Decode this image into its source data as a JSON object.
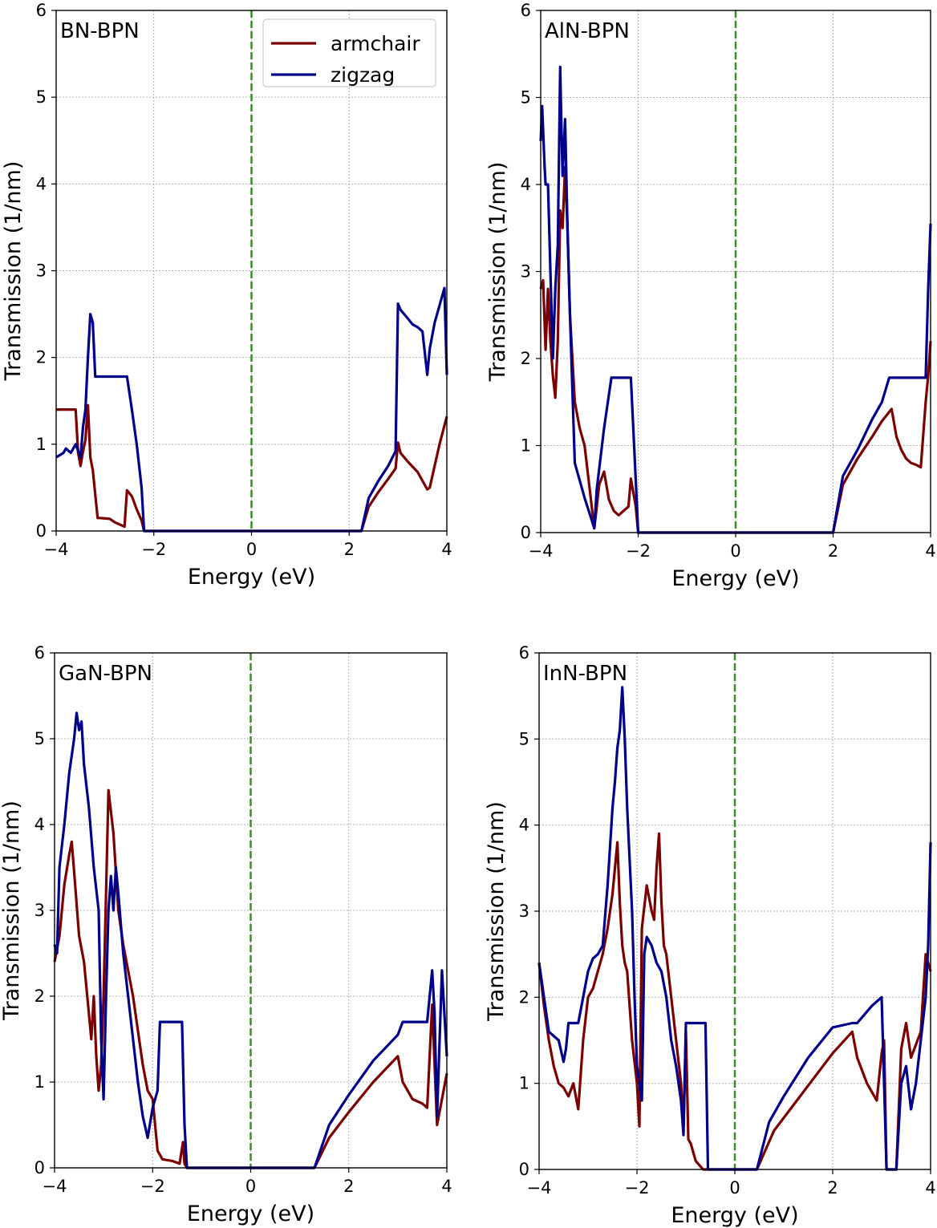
{
  "figure": {
    "legend": {
      "armchair_label": "armchair",
      "zigzag_label": "zigzag"
    },
    "colors": {
      "armchair": "#7b0000",
      "zigzag": "#00008b",
      "fermi_line": "#3c8c28",
      "grid": "#b0b0b0"
    }
  },
  "chart_data": [
    {
      "type": "line",
      "panel": "BN-BPN",
      "xlabel": "Energy (eV)",
      "ylabel": "Transmission (1/nm)",
      "xlim": [
        -4,
        4
      ],
      "ylim": [
        0,
        6
      ],
      "xticks": [
        -4,
        -2,
        0,
        2,
        4
      ],
      "xtick_labels": [
        "−4",
        "−2",
        "0",
        "2",
        "4"
      ],
      "yticks": [
        0,
        1,
        2,
        3,
        4,
        5,
        6
      ],
      "ytick_labels": [
        "0",
        "1",
        "2",
        "3",
        "4",
        "5",
        "6"
      ],
      "grid": true,
      "fermi_level": 0,
      "legend": true,
      "series": [
        {
          "name": "armchair",
          "x": [
            -4,
            -3.6,
            -3.55,
            -3.5,
            -3.45,
            -3.4,
            -3.35,
            -3.3,
            -3.25,
            -3.15,
            -3.1,
            -2.9,
            -2.8,
            -2.6,
            -2.55,
            -2.45,
            -2.35,
            -2.25,
            -2.2,
            2.25,
            2.4,
            2.6,
            2.8,
            2.95,
            3.0,
            3.05,
            3.2,
            3.4,
            3.6,
            3.65,
            3.75,
            3.85,
            4.0
          ],
          "y": [
            1.4,
            1.4,
            0.9,
            0.75,
            0.92,
            1.05,
            1.45,
            0.85,
            0.7,
            0.15,
            0.15,
            0.14,
            0.1,
            0.05,
            0.47,
            0.4,
            0.25,
            0.12,
            0.0,
            0.0,
            0.28,
            0.45,
            0.6,
            0.72,
            1.02,
            0.9,
            0.8,
            0.68,
            0.48,
            0.5,
            0.75,
            1.0,
            1.32
          ]
        },
        {
          "name": "zigzag",
          "x": [
            -4,
            -3.85,
            -3.8,
            -3.7,
            -3.6,
            -3.5,
            -3.45,
            -3.4,
            -3.35,
            -3.3,
            -3.25,
            -3.2,
            -3.15,
            -3.0,
            -2.55,
            -2.45,
            -2.35,
            -2.25,
            -2.2,
            2.25,
            2.4,
            2.6,
            2.8,
            2.95,
            3.0,
            3.05,
            3.2,
            3.3,
            3.4,
            3.5,
            3.6,
            3.65,
            3.75,
            3.85,
            3.95,
            4.0
          ],
          "y": [
            0.85,
            0.9,
            0.95,
            0.9,
            1.0,
            0.85,
            1.2,
            1.4,
            2.0,
            2.5,
            2.4,
            1.78,
            1.78,
            1.78,
            1.78,
            1.4,
            1.0,
            0.5,
            0.0,
            0.0,
            0.38,
            0.58,
            0.75,
            0.92,
            2.62,
            2.55,
            2.45,
            2.38,
            2.35,
            2.3,
            1.8,
            2.1,
            2.4,
            2.6,
            2.8,
            1.8
          ]
        }
      ]
    },
    {
      "type": "line",
      "panel": "AlN-BPN",
      "xlabel": "Energy (eV)",
      "ylabel": "Transmission (1/nm)",
      "xlim": [
        -4,
        4
      ],
      "ylim": [
        0,
        6
      ],
      "xticks": [
        -4,
        -2,
        0,
        2,
        4
      ],
      "xtick_labels": [
        "−4",
        "−2",
        "0",
        "2",
        "4"
      ],
      "yticks": [
        0,
        1,
        2,
        3,
        4,
        5,
        6
      ],
      "ytick_labels": [
        "0",
        "1",
        "2",
        "3",
        "4",
        "5",
        "6"
      ],
      "grid": true,
      "fermi_level": 0,
      "legend": false,
      "series": [
        {
          "name": "armchair",
          "x": [
            -4,
            -3.95,
            -3.9,
            -3.85,
            -3.8,
            -3.75,
            -3.7,
            -3.65,
            -3.6,
            -3.55,
            -3.5,
            -3.45,
            -3.4,
            -3.3,
            -3.2,
            -3.1,
            -2.9,
            -2.85,
            -2.8,
            -2.7,
            -2.6,
            -2.5,
            -2.4,
            -2.2,
            -2.15,
            -2.05,
            -2.0,
            2.0,
            2.2,
            2.5,
            2.8,
            3.0,
            3.2,
            3.3,
            3.4,
            3.5,
            3.6,
            3.7,
            3.8,
            3.9,
            3.95,
            4.0
          ],
          "y": [
            2.8,
            2.9,
            2.1,
            2.8,
            2.2,
            1.8,
            1.55,
            2.2,
            3.7,
            3.5,
            4.2,
            3.5,
            2.5,
            1.5,
            1.2,
            1.0,
            0.05,
            0.3,
            0.55,
            0.7,
            0.38,
            0.25,
            0.2,
            0.3,
            0.62,
            0.3,
            0.0,
            0.0,
            0.55,
            0.85,
            1.1,
            1.28,
            1.42,
            1.1,
            0.95,
            0.85,
            0.8,
            0.78,
            0.75,
            1.5,
            1.8,
            2.2
          ]
        },
        {
          "name": "zigzag",
          "x": [
            -4,
            -3.97,
            -3.92,
            -3.9,
            -3.85,
            -3.8,
            -3.75,
            -3.7,
            -3.65,
            -3.6,
            -3.58,
            -3.55,
            -3.5,
            -3.45,
            -3.4,
            -3.3,
            -3.2,
            -3.1,
            -2.9,
            -2.85,
            -2.7,
            -2.55,
            -2.5,
            -2.15,
            -2.1,
            -2.05,
            -2.0,
            2.0,
            2.2,
            2.5,
            2.8,
            3.0,
            3.15,
            3.3,
            3.9,
            3.95,
            4.0
          ],
          "y": [
            4.5,
            4.9,
            4.2,
            4.0,
            4.0,
            3.0,
            2.0,
            2.8,
            3.3,
            5.35,
            4.8,
            4.1,
            4.75,
            3.5,
            2.5,
            0.8,
            0.6,
            0.4,
            0.05,
            0.5,
            1.2,
            1.78,
            1.78,
            1.78,
            1.2,
            0.6,
            0.0,
            0.0,
            0.65,
            0.95,
            1.3,
            1.5,
            1.78,
            1.78,
            1.78,
            2.8,
            3.55
          ]
        }
      ]
    },
    {
      "type": "line",
      "panel": "GaN-BPN",
      "xlabel": "Energy (eV)",
      "ylabel": "Transmission (1/nm)",
      "xlim": [
        -4,
        4
      ],
      "ylim": [
        0,
        6
      ],
      "xticks": [
        -4,
        -2,
        0,
        2,
        4
      ],
      "xtick_labels": [
        "−4",
        "−2",
        "0",
        "2",
        "4"
      ],
      "yticks": [
        0,
        1,
        2,
        3,
        4,
        5,
        6
      ],
      "ytick_labels": [
        "0",
        "1",
        "2",
        "3",
        "4",
        "5",
        "6"
      ],
      "grid": true,
      "fermi_level": 0,
      "legend": false,
      "series": [
        {
          "name": "armchair",
          "x": [
            -4,
            -3.9,
            -3.8,
            -3.7,
            -3.65,
            -3.6,
            -3.5,
            -3.4,
            -3.3,
            -3.25,
            -3.2,
            -3.15,
            -3.1,
            -3.05,
            -3.0,
            -2.95,
            -2.9,
            -2.8,
            -2.7,
            -2.6,
            -2.4,
            -2.2,
            -2.1,
            -2.0,
            -1.9,
            -1.8,
            -1.6,
            -1.45,
            -1.38,
            -1.35,
            -1.3,
            1.3,
            1.6,
            2.0,
            2.5,
            3.0,
            3.1,
            3.3,
            3.5,
            3.6,
            3.7,
            3.8,
            3.9,
            4.0
          ],
          "y": [
            2.4,
            2.7,
            3.3,
            3.65,
            3.8,
            3.45,
            2.7,
            2.4,
            1.8,
            1.5,
            2.0,
            1.3,
            0.9,
            1.2,
            2.0,
            3.2,
            4.4,
            3.9,
            3.0,
            2.6,
            2.0,
            1.2,
            0.9,
            0.8,
            0.2,
            0.1,
            0.08,
            0.05,
            0.3,
            0.05,
            0.0,
            0.0,
            0.35,
            0.65,
            1.0,
            1.3,
            1.0,
            0.8,
            0.75,
            0.7,
            1.9,
            0.5,
            0.8,
            1.1
          ]
        },
        {
          "name": "zigzag",
          "x": [
            -4,
            -3.95,
            -3.9,
            -3.8,
            -3.7,
            -3.6,
            -3.55,
            -3.5,
            -3.45,
            -3.4,
            -3.3,
            -3.2,
            -3.1,
            -3.05,
            -3.0,
            -2.95,
            -2.9,
            -2.85,
            -2.8,
            -2.75,
            -2.7,
            -2.6,
            -2.5,
            -2.4,
            -2.3,
            -2.2,
            -2.1,
            -2.0,
            -1.9,
            -1.85,
            -1.4,
            -1.35,
            -1.3,
            1.3,
            1.6,
            2.0,
            2.5,
            3.0,
            3.1,
            3.6,
            3.7,
            3.75,
            3.8,
            3.9,
            4.0
          ],
          "y": [
            2.6,
            2.5,
            3.5,
            4.0,
            4.6,
            5.0,
            5.3,
            5.1,
            5.2,
            4.7,
            4.2,
            3.5,
            3.0,
            1.5,
            0.8,
            2.0,
            3.0,
            3.4,
            3.0,
            3.5,
            3.2,
            2.5,
            2.0,
            1.5,
            1.0,
            0.6,
            0.35,
            0.7,
            0.9,
            1.7,
            1.7,
            0.5,
            0.0,
            0.0,
            0.5,
            0.85,
            1.25,
            1.55,
            1.7,
            1.7,
            2.3,
            1.8,
            0.6,
            2.3,
            1.3
          ]
        }
      ]
    },
    {
      "type": "line",
      "panel": "InN-BPN",
      "xlabel": "Energy (eV)",
      "ylabel": "Transmission (1/nm)",
      "xlim": [
        -4,
        4
      ],
      "ylim": [
        0,
        6
      ],
      "xticks": [
        -4,
        -2,
        0,
        2,
        4
      ],
      "xtick_labels": [
        "−4",
        "−2",
        "0",
        "2",
        "4"
      ],
      "yticks": [
        0,
        1,
        2,
        3,
        4,
        5,
        6
      ],
      "ytick_labels": [
        "0",
        "1",
        "2",
        "3",
        "4",
        "5",
        "6"
      ],
      "grid": true,
      "fermi_level": 0,
      "legend": false,
      "series": [
        {
          "name": "armchair",
          "x": [
            -4,
            -3.9,
            -3.8,
            -3.7,
            -3.6,
            -3.5,
            -3.4,
            -3.3,
            -3.2,
            -3.1,
            -3.0,
            -2.9,
            -2.8,
            -2.7,
            -2.6,
            -2.5,
            -2.4,
            -2.35,
            -2.3,
            -2.25,
            -2.2,
            -2.1,
            -2.0,
            -1.95,
            -1.9,
            -1.8,
            -1.7,
            -1.65,
            -1.6,
            -1.55,
            -1.5,
            -1.45,
            -1.4,
            -1.3,
            -1.2,
            -1.1,
            -1.05,
            -1.0,
            -0.95,
            -0.9,
            -0.8,
            -0.65,
            -0.6,
            0.45,
            0.8,
            1.2,
            1.6,
            2.0,
            2.4,
            2.5,
            2.7,
            2.9,
            3.0,
            3.05,
            3.1,
            3.3,
            3.4,
            3.5,
            3.6,
            3.8,
            3.9,
            4.0
          ],
          "y": [
            2.4,
            1.9,
            1.5,
            1.2,
            1.0,
            0.95,
            0.85,
            1.0,
            0.7,
            1.5,
            2.0,
            2.1,
            2.3,
            2.5,
            2.8,
            3.2,
            3.8,
            3.1,
            2.6,
            2.4,
            2.3,
            1.5,
            1.0,
            0.5,
            2.8,
            3.3,
            3.0,
            2.9,
            3.5,
            3.9,
            3.1,
            2.6,
            2.5,
            2.0,
            1.5,
            1.0,
            0.5,
            1.6,
            0.35,
            0.3,
            0.1,
            0.0,
            0.0,
            0.0,
            0.45,
            0.75,
            1.05,
            1.35,
            1.6,
            1.3,
            1.0,
            0.8,
            1.35,
            1.5,
            0.0,
            0.0,
            1.4,
            1.7,
            1.3,
            1.6,
            2.5,
            2.3
          ]
        },
        {
          "name": "zigzag",
          "x": [
            -4,
            -3.9,
            -3.8,
            -3.6,
            -3.5,
            -3.45,
            -3.4,
            -3.2,
            -3.1,
            -3.0,
            -2.9,
            -2.8,
            -2.7,
            -2.6,
            -2.5,
            -2.45,
            -2.4,
            -2.35,
            -2.3,
            -2.25,
            -2.2,
            -2.1,
            -2.05,
            -2.0,
            -1.9,
            -1.85,
            -1.8,
            -1.7,
            -1.6,
            -1.5,
            -1.4,
            -1.3,
            -1.2,
            -1.1,
            -1.05,
            -1.0,
            -0.95,
            -0.6,
            -0.55,
            0.45,
            0.7,
            1.0,
            1.5,
            2.0,
            2.4,
            2.5,
            2.8,
            3.0,
            3.1,
            3.3,
            3.4,
            3.5,
            3.6,
            3.7,
            3.8,
            3.9,
            3.95,
            4.0
          ],
          "y": [
            2.4,
            2.0,
            1.6,
            1.5,
            1.25,
            1.4,
            1.7,
            1.7,
            2.0,
            2.3,
            2.45,
            2.5,
            2.6,
            3.3,
            4.2,
            4.5,
            4.9,
            5.1,
            5.6,
            5.0,
            4.2,
            3.0,
            2.0,
            1.2,
            0.8,
            2.5,
            2.7,
            2.6,
            2.4,
            2.3,
            2.0,
            1.5,
            1.2,
            0.8,
            0.4,
            1.7,
            1.7,
            1.7,
            0.0,
            0.0,
            0.55,
            0.85,
            1.3,
            1.65,
            1.7,
            1.7,
            1.9,
            2.0,
            0.0,
            0.0,
            1.0,
            1.2,
            0.7,
            1.0,
            1.5,
            2.0,
            2.6,
            3.8
          ]
        }
      ]
    }
  ]
}
